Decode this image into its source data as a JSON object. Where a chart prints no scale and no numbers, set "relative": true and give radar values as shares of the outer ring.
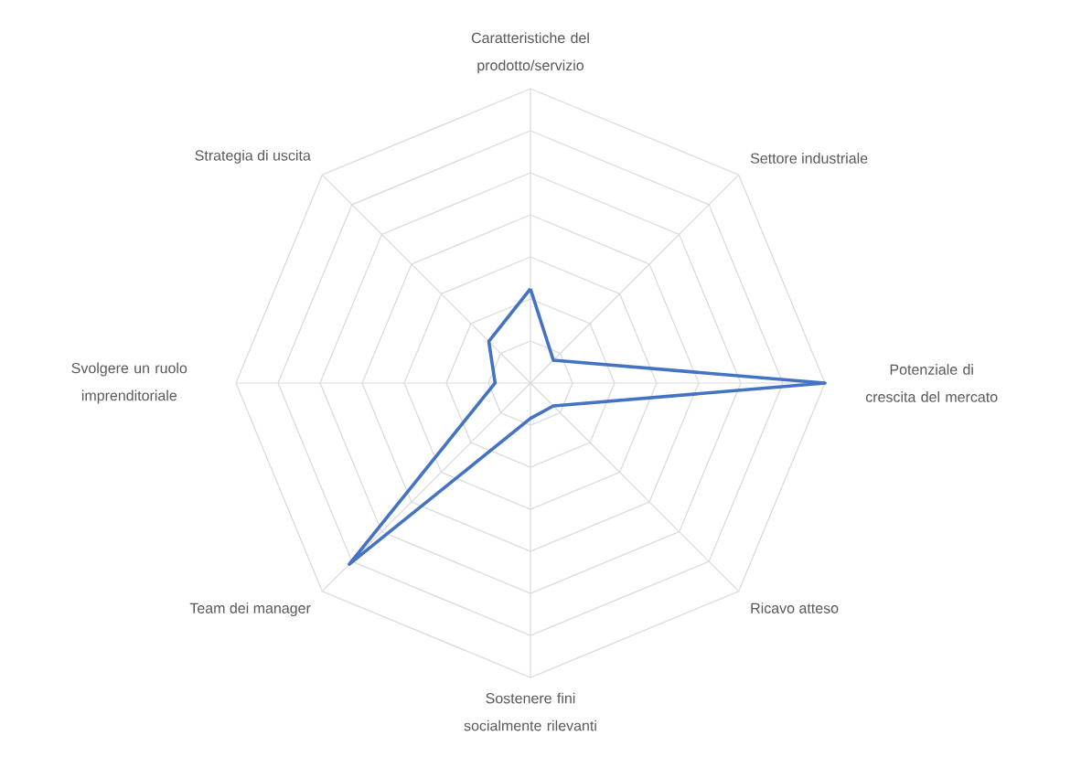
{
  "chart_data": {
    "type": "radar",
    "relative": true,
    "grid": true,
    "categories": [
      "Caratteristiche del prodotto/servizio",
      "Settore industriale",
      "Potenziale di crescita del mercato",
      "Ricavo atteso",
      "Sostenere fini socialmente rilevanti",
      "Team dei manager",
      "Svolgere un ruolo imprenditoriale",
      "Strategia di uscita"
    ],
    "series": [
      {
        "color": "#4472c4",
        "values": [
          0.32,
          0.11,
          1.0,
          0.11,
          0.12,
          0.87,
          0.12,
          0.2
        ]
      }
    ]
  }
}
